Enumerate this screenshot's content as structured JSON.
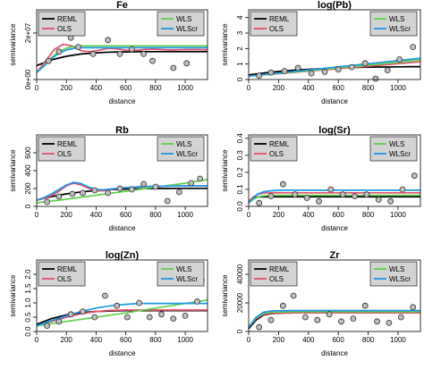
{
  "colors": {
    "REML": "#000000",
    "OLS": "#df536b",
    "WLS": "#61d04f",
    "WLScr": "#2297e6",
    "point_fill": "#bebebe",
    "legend_bg": "#d3d3d3"
  },
  "legend_left": [
    "REML",
    "OLS"
  ],
  "legend_right": [
    "WLS",
    "WLScr"
  ],
  "chart_data": [
    {
      "type": "line",
      "title": "Fe",
      "xlabel": "distance",
      "ylabel": "semivariance",
      "xlim": [
        0,
        1150
      ],
      "ylim": [
        0,
        30000000
      ],
      "xticks": [
        0,
        200,
        400,
        600,
        800,
        1000
      ],
      "xtick_labels": [
        "0",
        "200",
        "400",
        "600",
        "800",
        "1000"
      ],
      "yticks": [
        0,
        20000000
      ],
      "ytick_labels": [
        "0e+00",
        "2e+07"
      ],
      "points": {
        "x": [
          80,
          150,
          230,
          280,
          380,
          480,
          560,
          640,
          720,
          780,
          920,
          1010
        ],
        "y": [
          8000000,
          12000000,
          18000000,
          14000000,
          11000000,
          17000000,
          11000000,
          13000000,
          11000000,
          8000000,
          5000000,
          7000000
        ]
      },
      "series": [
        {
          "name": "REML",
          "x": [
            0,
            100,
            200,
            300,
            400,
            500,
            600,
            700,
            800,
            900,
            1000,
            1100,
            1150
          ],
          "y": [
            6000000,
            8500000,
            10000000,
            11000000,
            11500000,
            11800000,
            11900000,
            12000000,
            12000000,
            12000000,
            12000000,
            12000000,
            12000000
          ]
        },
        {
          "name": "OLS",
          "x": [
            0,
            60,
            120,
            180,
            240,
            300,
            360,
            420,
            480,
            540,
            600,
            660,
            720,
            780,
            840,
            900,
            960,
            1020,
            1080,
            1150
          ],
          "y": [
            3000000,
            8000000,
            13000000,
            15200000,
            14400000,
            12400000,
            12000000,
            12600000,
            13400000,
            13200000,
            12600000,
            12500000,
            12900000,
            13100000,
            12900000,
            12700000,
            12800000,
            12900000,
            12900000,
            12800000
          ]
        },
        {
          "name": "WLS",
          "x": [
            0,
            50,
            100,
            150,
            200,
            250,
            300,
            1150
          ],
          "y": [
            3000000,
            6000000,
            9500000,
            12000000,
            13500000,
            14200000,
            14500000,
            14500000
          ]
        },
        {
          "name": "WLScr",
          "x": [
            0,
            50,
            100,
            150,
            200,
            250,
            300,
            1150
          ],
          "y": [
            3000000,
            5800000,
            9000000,
            11300000,
            12700000,
            13400000,
            13700000,
            13700000
          ]
        }
      ]
    },
    {
      "type": "line",
      "title": "log(Pb)",
      "xlabel": "distance",
      "ylabel": "semivariance",
      "xlim": [
        0,
        1150
      ],
      "ylim": [
        0,
        4.5
      ],
      "xticks": [
        0,
        200,
        400,
        600,
        800,
        1000
      ],
      "xtick_labels": [
        "0",
        "200",
        "400",
        "600",
        "800",
        "1000"
      ],
      "yticks": [
        0,
        1,
        2,
        3,
        4
      ],
      "ytick_labels": [
        "0",
        "1",
        "2",
        "3",
        "4"
      ],
      "points": {
        "x": [
          70,
          150,
          240,
          330,
          420,
          510,
          600,
          690,
          780,
          850,
          930,
          1010,
          1100
        ],
        "y": [
          0.25,
          0.45,
          0.55,
          0.75,
          0.4,
          0.5,
          0.65,
          0.8,
          1.05,
          0.05,
          0.6,
          1.3,
          2.1
        ]
      },
      "series": [
        {
          "name": "REML",
          "x": [
            0,
            100,
            200,
            300,
            400,
            500,
            600,
            700,
            800,
            900,
            1000,
            1100,
            1150
          ],
          "y": [
            0.3,
            0.42,
            0.52,
            0.6,
            0.66,
            0.71,
            0.75,
            0.78,
            0.8,
            0.81,
            0.82,
            0.83,
            0.83
          ]
        },
        {
          "name": "OLS",
          "x": [
            0,
            200,
            400,
            600,
            800,
            1000,
            1150
          ],
          "y": [
            0.22,
            0.38,
            0.54,
            0.7,
            0.86,
            1.02,
            1.15
          ]
        },
        {
          "name": "WLS",
          "x": [
            0,
            200,
            400,
            600,
            800,
            1000,
            1150
          ],
          "y": [
            0.22,
            0.4,
            0.57,
            0.75,
            0.93,
            1.12,
            1.27
          ]
        },
        {
          "name": "WLScr",
          "x": [
            0,
            200,
            400,
            600,
            800,
            1000,
            1150
          ],
          "y": [
            0.22,
            0.42,
            0.62,
            0.82,
            1.02,
            1.22,
            1.38
          ]
        }
      ]
    },
    {
      "type": "line",
      "title": "Rb",
      "xlabel": "distance",
      "ylabel": "semivariance",
      "xlim": [
        0,
        1150
      ],
      "ylim": [
        0,
        800
      ],
      "xticks": [
        0,
        200,
        400,
        600,
        800,
        1000
      ],
      "xtick_labels": [
        "0",
        "200",
        "400",
        "600",
        "800",
        "1000"
      ],
      "yticks": [
        0,
        200,
        400,
        600
      ],
      "ytick_labels": [
        "0",
        "200",
        "400",
        "600"
      ],
      "points": {
        "x": [
          70,
          150,
          240,
          310,
          390,
          480,
          560,
          640,
          720,
          800,
          880,
          960,
          1040,
          1100
        ],
        "y": [
          50,
          110,
          140,
          150,
          180,
          150,
          200,
          190,
          250,
          220,
          60,
          160,
          260,
          310
        ]
      },
      "series": [
        {
          "name": "REML",
          "x": [
            0,
            100,
            200,
            300,
            400,
            500,
            600,
            700,
            800,
            900,
            1000,
            1100,
            1150
          ],
          "y": [
            70,
            110,
            140,
            162,
            178,
            188,
            194,
            198,
            200,
            201,
            202,
            202,
            202
          ]
        },
        {
          "name": "OLS",
          "x": [
            0,
            50,
            100,
            150,
            200,
            250,
            300,
            350,
            400,
            450,
            500,
            600,
            700,
            800,
            900,
            1000,
            1100,
            1150
          ],
          "y": [
            70,
            90,
            120,
            170,
            230,
            260,
            240,
            200,
            175,
            175,
            190,
            210,
            220,
            225,
            228,
            230,
            230,
            230
          ]
        },
        {
          "name": "WLS",
          "x": [
            0,
            200,
            400,
            600,
            800,
            1000,
            1150
          ],
          "y": [
            40,
            80,
            125,
            170,
            215,
            260,
            300
          ]
        },
        {
          "name": "WLScr",
          "x": [
            0,
            50,
            100,
            150,
            200,
            250,
            300,
            350,
            400,
            450,
            500,
            600,
            700,
            800,
            900,
            1000,
            1100,
            1150
          ],
          "y": [
            70,
            100,
            140,
            190,
            240,
            270,
            255,
            215,
            190,
            185,
            195,
            210,
            220,
            225,
            228,
            230,
            230,
            230
          ]
        }
      ]
    },
    {
      "type": "line",
      "title": "log(Sr)",
      "xlabel": "distance",
      "ylabel": "semivariance",
      "xlim": [
        0,
        1150
      ],
      "ylim": [
        0,
        0.42
      ],
      "xticks": [
        0,
        200,
        400,
        600,
        800,
        1000
      ],
      "xtick_labels": [
        "0",
        "200",
        "400",
        "600",
        "800",
        "1000"
      ],
      "yticks": [
        0,
        0.1,
        0.2,
        0.3,
        0.4
      ],
      "ytick_labels": [
        "0.0",
        "0.1",
        "0.2",
        "0.3",
        "0.4"
      ],
      "points": {
        "x": [
          70,
          150,
          230,
          310,
          390,
          470,
          550,
          630,
          710,
          790,
          870,
          950,
          1030,
          1110
        ],
        "y": [
          0.02,
          0.06,
          0.13,
          0.07,
          0.05,
          0.03,
          0.1,
          0.07,
          0.06,
          0.07,
          0.04,
          0.03,
          0.1,
          0.18
        ]
      },
      "series": [
        {
          "name": "REML",
          "x": [
            0,
            30,
            60,
            100,
            1150
          ],
          "y": [
            0.03,
            0.05,
            0.055,
            0.056,
            0.056
          ]
        },
        {
          "name": "OLS",
          "x": [
            0,
            30,
            60,
            100,
            150,
            200,
            1150
          ],
          "y": [
            0.03,
            0.055,
            0.07,
            0.078,
            0.08,
            0.08,
            0.08
          ]
        },
        {
          "name": "WLS",
          "x": [
            0,
            30,
            60,
            100,
            150,
            1150
          ],
          "y": [
            0.02,
            0.04,
            0.055,
            0.062,
            0.065,
            0.065
          ]
        },
        {
          "name": "WLScr",
          "x": [
            0,
            30,
            60,
            100,
            150,
            200,
            250,
            1150
          ],
          "y": [
            0.02,
            0.05,
            0.072,
            0.086,
            0.092,
            0.094,
            0.095,
            0.095
          ]
        }
      ]
    },
    {
      "type": "line",
      "title": "log(Zn)",
      "xlabel": "distance",
      "ylabel": "semivariance",
      "xlim": [
        0,
        1150
      ],
      "ylim": [
        0,
        2.5
      ],
      "xticks": [
        0,
        200,
        400,
        600,
        800,
        1000
      ],
      "xtick_labels": [
        "0",
        "200",
        "400",
        "600",
        "800",
        "1000"
      ],
      "yticks": [
        0,
        0.5,
        1,
        1.5,
        2
      ],
      "ytick_labels": [
        "0.0",
        "0.5",
        "1.0",
        "1.5",
        "2.0"
      ],
      "points": {
        "x": [
          70,
          150,
          230,
          310,
          390,
          460,
          540,
          610,
          690,
          760,
          840,
          920,
          1000,
          1080,
          1110
        ],
        "y": [
          0.2,
          0.35,
          0.6,
          0.7,
          0.5,
          1.25,
          0.9,
          0.5,
          1.0,
          0.5,
          0.6,
          0.45,
          0.55,
          1.05,
          1.8
        ]
      },
      "series": [
        {
          "name": "REML",
          "x": [
            0,
            100,
            200,
            300,
            400,
            500,
            600,
            700,
            800,
            1000,
            1150
          ],
          "y": [
            0.25,
            0.45,
            0.58,
            0.66,
            0.7,
            0.72,
            0.73,
            0.73,
            0.73,
            0.73,
            0.73
          ]
        },
        {
          "name": "OLS",
          "x": [
            0,
            100,
            200,
            300,
            400,
            500,
            600,
            700,
            800,
            1150
          ],
          "y": [
            0.2,
            0.35,
            0.5,
            0.62,
            0.7,
            0.74,
            0.75,
            0.75,
            0.75,
            0.75
          ]
        },
        {
          "name": "WLS",
          "x": [
            0,
            200,
            400,
            600,
            800,
            1000,
            1150
          ],
          "y": [
            0.2,
            0.35,
            0.5,
            0.65,
            0.82,
            0.98,
            1.1
          ]
        },
        {
          "name": "WLScr",
          "x": [
            0,
            100,
            200,
            300,
            400,
            500,
            600,
            700,
            800,
            900,
            1000,
            1150
          ],
          "y": [
            0.2,
            0.38,
            0.55,
            0.7,
            0.82,
            0.9,
            0.95,
            0.98,
            0.98,
            0.98,
            0.98,
            0.98
          ]
        }
      ]
    },
    {
      "type": "line",
      "title": "Zr",
      "xlabel": "distance",
      "ylabel": "semivariance",
      "xlim": [
        0,
        1150
      ],
      "ylim": [
        0,
        50000
      ],
      "xticks": [
        0,
        200,
        400,
        600,
        800,
        1000
      ],
      "xtick_labels": [
        "0",
        "200",
        "400",
        "600",
        "800",
        "1000"
      ],
      "yticks": [
        0,
        20000,
        40000
      ],
      "ytick_labels": [
        "0",
        "20000",
        "40000"
      ],
      "points": {
        "x": [
          70,
          150,
          230,
          300,
          380,
          460,
          540,
          620,
          700,
          780,
          860,
          940,
          1020,
          1100
        ],
        "y": [
          3000,
          8000,
          18000,
          25000,
          10000,
          8000,
          12000,
          7000,
          9000,
          18000,
          7000,
          6000,
          10000,
          17000
        ]
      },
      "series": [
        {
          "name": "REML",
          "x": [
            0,
            50,
            100,
            150,
            200,
            300,
            400,
            1150
          ],
          "y": [
            2000,
            8000,
            11500,
            12500,
            12800,
            13000,
            13000,
            13000
          ]
        },
        {
          "name": "OLS",
          "x": [
            0,
            50,
            100,
            150,
            200,
            300,
            1150
          ],
          "y": [
            3000,
            9000,
            12000,
            12800,
            13000,
            13000,
            13000
          ]
        },
        {
          "name": "WLS",
          "x": [
            0,
            50,
            100,
            150,
            200,
            300,
            1150
          ],
          "y": [
            3000,
            9500,
            12800,
            13500,
            13700,
            13800,
            13800
          ]
        },
        {
          "name": "WLScr",
          "x": [
            0,
            50,
            100,
            150,
            200,
            300,
            1150
          ],
          "y": [
            3000,
            10000,
            13500,
            14300,
            14500,
            14600,
            14600
          ]
        }
      ]
    }
  ]
}
